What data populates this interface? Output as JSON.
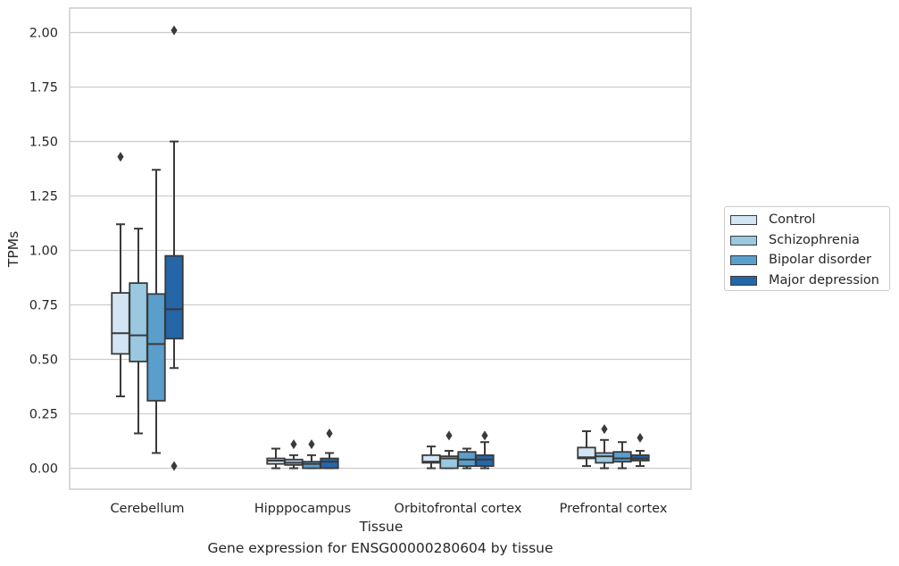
{
  "chart_data": {
    "type": "box",
    "title": "",
    "xlabel": "Tissue",
    "ylabel": "TPMs",
    "caption": "Gene expression for ENSG00000280604 by tissue",
    "categories": [
      "Cerebellum",
      "Hipppocampus",
      "Orbitofrontal cortex",
      "Prefrontal cortex"
    ],
    "ylim": [
      -0.1,
      2.12
    ],
    "yticks": [
      0.0,
      0.25,
      0.5,
      0.75,
      1.0,
      1.25,
      1.5,
      1.75,
      2.0
    ],
    "ytick_labels": [
      "0.00",
      "0.25",
      "0.50",
      "0.75",
      "1.00",
      "1.25",
      "1.50",
      "1.75",
      "2.00"
    ],
    "grid": true,
    "legend_position": "right",
    "series": [
      {
        "name": "Control",
        "color": "#d3e4f3",
        "boxes": [
          {
            "whislo": 0.33,
            "q1": 0.525,
            "med": 0.62,
            "q3": 0.805,
            "whishi": 1.12,
            "fliers": [
              1.43
            ]
          },
          {
            "whislo": 0.0,
            "q1": 0.02,
            "med": 0.035,
            "q3": 0.045,
            "whishi": 0.09,
            "fliers": []
          },
          {
            "whislo": 0.0,
            "q1": 0.025,
            "med": 0.03,
            "q3": 0.06,
            "whishi": 0.1,
            "fliers": []
          },
          {
            "whislo": 0.01,
            "q1": 0.045,
            "med": 0.05,
            "q3": 0.095,
            "whishi": 0.17,
            "fliers": []
          }
        ]
      },
      {
        "name": "Schizophrenia",
        "color": "#9ac8e0",
        "boxes": [
          {
            "whislo": 0.16,
            "q1": 0.49,
            "med": 0.61,
            "q3": 0.85,
            "whishi": 1.1,
            "fliers": []
          },
          {
            "whislo": 0.0,
            "q1": 0.015,
            "med": 0.025,
            "q3": 0.04,
            "whishi": 0.06,
            "fliers": [
              0.11
            ]
          },
          {
            "whislo": 0.0,
            "q1": 0.0,
            "med": 0.045,
            "q3": 0.055,
            "whishi": 0.08,
            "fliers": [
              0.15
            ]
          },
          {
            "whislo": 0.0,
            "q1": 0.025,
            "med": 0.055,
            "q3": 0.07,
            "whishi": 0.13,
            "fliers": [
              0.18
            ]
          }
        ]
      },
      {
        "name": "Bipolar disorder",
        "color": "#5a9ecc",
        "boxes": [
          {
            "whislo": 0.07,
            "q1": 0.31,
            "med": 0.57,
            "q3": 0.8,
            "whishi": 1.37,
            "fliers": []
          },
          {
            "whislo": 0.0,
            "q1": 0.0,
            "med": 0.02,
            "q3": 0.03,
            "whishi": 0.06,
            "fliers": [
              0.11
            ]
          },
          {
            "whislo": 0.0,
            "q1": 0.01,
            "med": 0.04,
            "q3": 0.075,
            "whishi": 0.09,
            "fliers": []
          },
          {
            "whislo": 0.0,
            "q1": 0.03,
            "med": 0.045,
            "q3": 0.075,
            "whishi": 0.12,
            "fliers": []
          }
        ]
      },
      {
        "name": "Major depression",
        "color": "#2466a8",
        "boxes": [
          {
            "whislo": 0.46,
            "q1": 0.595,
            "med": 0.73,
            "q3": 0.975,
            "whishi": 1.5,
            "fliers": [
              0.01,
              2.01
            ]
          },
          {
            "whislo": 0.0,
            "q1": 0.0,
            "med": 0.03,
            "q3": 0.045,
            "whishi": 0.07,
            "fliers": [
              0.16
            ]
          },
          {
            "whislo": 0.0,
            "q1": 0.01,
            "med": 0.04,
            "q3": 0.06,
            "whishi": 0.12,
            "fliers": [
              0.15
            ]
          },
          {
            "whislo": 0.01,
            "q1": 0.035,
            "med": 0.045,
            "q3": 0.06,
            "whishi": 0.08,
            "fliers": [
              0.14
            ]
          }
        ]
      }
    ]
  },
  "colors": {
    "grid": "#cccccc",
    "axis_border": "#cccccc",
    "box_edge": "#3a3a3a",
    "text": "#262626"
  }
}
